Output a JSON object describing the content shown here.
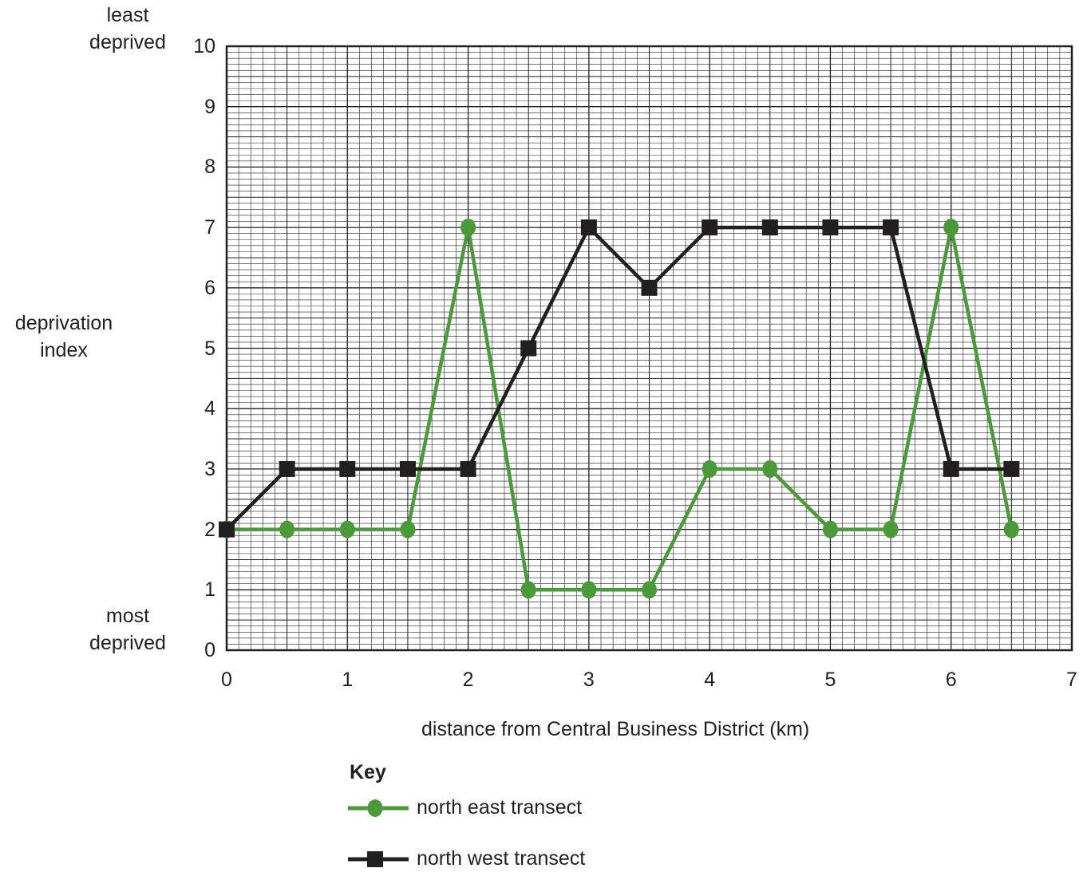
{
  "chart_data": {
    "type": "line",
    "xlabel": "distance from Central Business District (km)",
    "ylabel": [
      "deprivation",
      "index"
    ],
    "ytop_label": [
      "least",
      "deprived"
    ],
    "ybottom_label": [
      "most",
      "deprived"
    ],
    "xlim": [
      0,
      7
    ],
    "ylim": [
      0,
      10
    ],
    "x_ticks": [
      "0",
      "1",
      "2",
      "3",
      "4",
      "5",
      "6",
      "7"
    ],
    "y_ticks": [
      "0",
      "1",
      "2",
      "3",
      "4",
      "5",
      "6",
      "7",
      "8",
      "9",
      "10"
    ],
    "grid": true,
    "x": [
      0,
      0.5,
      1,
      1.5,
      2,
      2.5,
      3,
      3.5,
      4,
      4.5,
      5,
      5.5,
      6,
      6.5
    ],
    "series": [
      {
        "name": "north east transect",
        "marker": "circle",
        "color": "#4a9a3a",
        "x": [
          0,
          0.5,
          1,
          1.5,
          2,
          2.5,
          3,
          3.5,
          4,
          4.5,
          5,
          5.5,
          6,
          6.5
        ],
        "values": [
          2,
          2,
          2,
          2,
          7,
          1,
          1,
          1,
          3,
          3,
          2,
          2,
          7,
          2
        ]
      },
      {
        "name": "north west transect",
        "marker": "square",
        "color": "#231f20",
        "x": [
          0,
          0.5,
          1,
          1.5,
          2,
          2.5,
          3,
          3.5,
          4,
          4.5,
          5,
          5.5,
          6,
          6.5
        ],
        "values": [
          2,
          3,
          3,
          3,
          3,
          5,
          7,
          6,
          7,
          7,
          7,
          7,
          3,
          3
        ]
      }
    ],
    "legend": {
      "title": "Key",
      "placement": "bottom"
    }
  }
}
